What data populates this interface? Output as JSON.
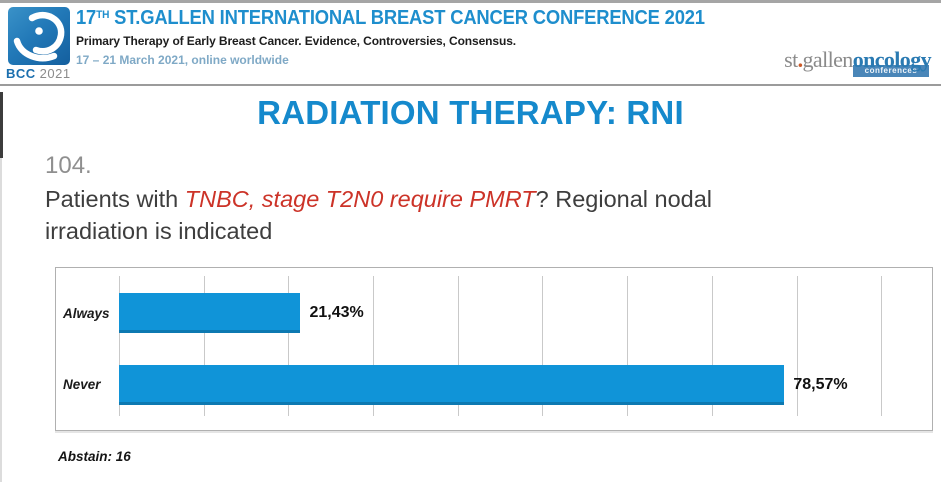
{
  "header": {
    "logo": {
      "bcc": "BCC",
      "year": "2021"
    },
    "title_num": "17",
    "title_sup": "TH",
    "title_rest": " ST.GALLEN INTERNATIONAL BREAST CANCER CONFERENCE 2021",
    "subtitle": "Primary Therapy of Early Breast Cancer. Evidence, Controversies, Consensus.",
    "dates": "17 – 21 March 2021, online worldwide",
    "org": {
      "st": "st",
      "dot": ".",
      "gallen": "gallen",
      "oncology": "oncology",
      "conferences": "conferences"
    }
  },
  "main": {
    "title": "RADIATION THERAPY: RNI",
    "question_number": "104.",
    "question": {
      "prefix": "Patients with ",
      "highlight": "TNBC, stage T2N0 require PMRT",
      "suffix": "? Regional nodal irradiation is indicated"
    },
    "abstain": "Abstain: 16"
  },
  "chart_data": {
    "type": "bar",
    "orientation": "horizontal",
    "title": "",
    "categories": [
      "Always",
      "Never"
    ],
    "values": [
      21.43,
      78.57
    ],
    "value_labels": [
      "21,43%",
      "78,57%"
    ],
    "xlim": [
      0,
      96
    ],
    "gridline_interval": 10,
    "grid": true,
    "legend": false,
    "bar_color": "#1094d8",
    "footnote": "Abstain: 16"
  },
  "colors": {
    "header_title_blue": "#1e8ecd",
    "dates_blue": "#7fa9c6",
    "main_title_blue": "#1589cc",
    "question_number_gray": "#8f8f8f",
    "question_text_dark": "#3e3e3e",
    "highlight_red": "#cc3328",
    "bar_blue": "#1094d8",
    "logo_blue": "#1b6fae"
  }
}
